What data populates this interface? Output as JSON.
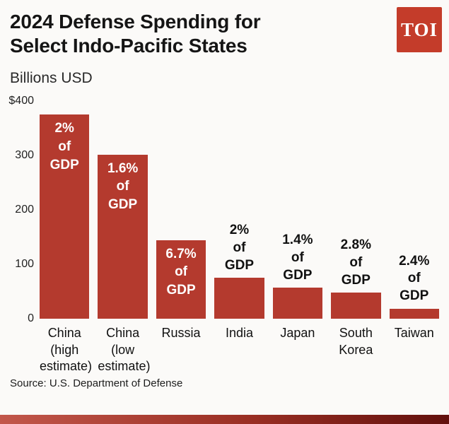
{
  "header": {
    "title_lines": [
      "2024 Defense Spending for",
      "Select Indo-Pacific States"
    ],
    "logo_text": "TOI",
    "logo_color": "#c43c2a"
  },
  "chart": {
    "source": "Source: U.S. Department of Defense"
  },
  "colors": {
    "bar": "#b43a2e",
    "strip_gradient_left": "#c2574b",
    "strip_gradient_mid": "#9a2f24",
    "strip_gradient_right": "#62100d",
    "background": "#fbfaf8"
  },
  "chart_data": {
    "type": "bar",
    "title": "2024 Defense Spending for Select Indo-Pacific States",
    "xlabel": "",
    "ylabel": "Billions USD",
    "ylim": [
      0,
      400
    ],
    "grid": false,
    "legend": "none",
    "bar_color": "#b43a2e",
    "yticks": [
      {
        "label": "$400",
        "value": 400
      },
      {
        "label": "300",
        "value": 300
      },
      {
        "label": "200",
        "value": 200
      },
      {
        "label": "100",
        "value": 100
      },
      {
        "label": "0",
        "value": 0
      }
    ],
    "categories": [
      "China (high estimate)",
      "China (low estimate)",
      "Russia",
      "India",
      "Japan",
      "South Korea",
      "Taiwan"
    ],
    "category_display": [
      "China\n(high\nestimate)",
      "China\n(low\nestimate)",
      "Russia",
      "India",
      "Japan",
      "South\nKorea",
      "Taiwan"
    ],
    "values": [
      375,
      302,
      145,
      75,
      57,
      48,
      19
    ],
    "annotations": [
      {
        "text": "2%\nof\nGDP",
        "placement": "inside"
      },
      {
        "text": "1.6%\nof\nGDP",
        "placement": "inside"
      },
      {
        "text": "6.7%\nof\nGDP",
        "placement": "inside"
      },
      {
        "text": "2%\nof\nGDP",
        "placement": "above"
      },
      {
        "text": "1.4%\nof\nGDP",
        "placement": "above"
      },
      {
        "text": "2.8%\nof\nGDP",
        "placement": "above"
      },
      {
        "text": "2.4%\nof\nGDP",
        "placement": "above"
      }
    ]
  }
}
